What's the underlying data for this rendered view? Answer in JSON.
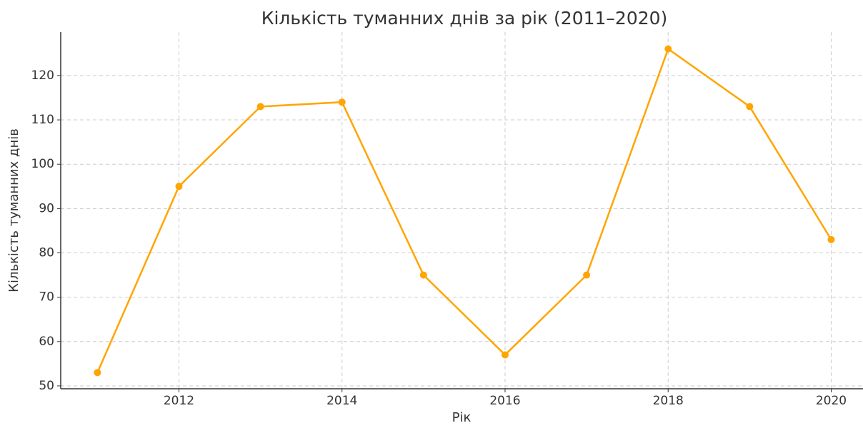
{
  "chart_data": {
    "type": "line",
    "title": "Кількість туманних днів за рік (2011–2020)",
    "x_label": "Рік",
    "y_label": "Кількість туманних днів",
    "x": [
      2011,
      2012,
      2013,
      2014,
      2015,
      2016,
      2017,
      2018,
      2019,
      2020
    ],
    "series": [
      {
        "name": "Кількість туманних днів",
        "color": "#ffa500",
        "values": [
          53,
          95,
          113,
          114,
          75,
          57,
          75,
          126,
          113,
          83
        ]
      }
    ],
    "xlim": [
      2010.55,
      2020.39
    ],
    "ylim": [
      49.35,
      129.8
    ],
    "xticks": [
      2012,
      2014,
      2016,
      2018,
      2020
    ],
    "yticks": [
      50,
      60,
      70,
      80,
      90,
      100,
      110,
      120
    ],
    "grid": true
  }
}
